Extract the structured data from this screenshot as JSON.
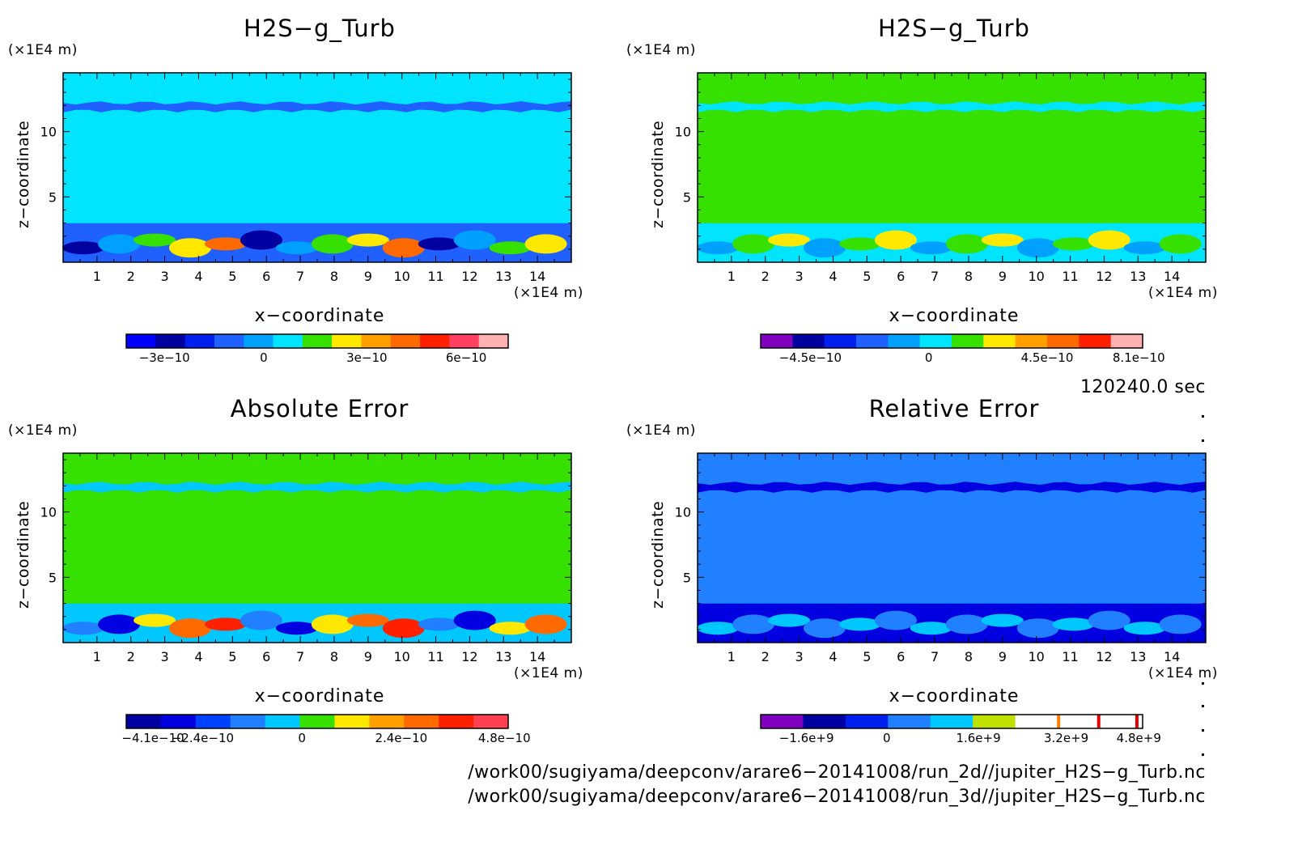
{
  "chart_data": [
    {
      "type": "heatmap",
      "title": "H2S−g_Turb",
      "xlabel": "x−coordinate",
      "ylabel": "z−coordinate",
      "x_unit": "(×1E4 m)",
      "y_unit": "(×1E4 m)",
      "xlim": [
        0,
        15
      ],
      "ylim": [
        0,
        14.5
      ],
      "x_ticks": [
        "1",
        "2",
        "3",
        "4",
        "5",
        "6",
        "7",
        "8",
        "9",
        "10",
        "11",
        "12",
        "13",
        "14"
      ],
      "y_ticks": [
        "5",
        "10"
      ],
      "background_color": "#00e4ff",
      "colorbar": {
        "colors": [
          "#0000ff",
          "#0000a0",
          "#0020f0",
          "#2060ff",
          "#00a0ff",
          "#00e4ff",
          "#36e000",
          "#ffe800",
          "#ffa000",
          "#ff6a00",
          "#ff2000",
          "#ff4060",
          "#ffb0b0"
        ],
        "tick_labels": [
          "−3e−10",
          "0",
          "3e−10",
          "6e−10"
        ]
      }
    },
    {
      "type": "heatmap",
      "title": "H2S−g_Turb",
      "xlabel": "x−coordinate",
      "ylabel": "z−coordinate",
      "x_unit": "(×1E4 m)",
      "y_unit": "(×1E4 m)",
      "xlim": [
        0,
        15
      ],
      "ylim": [
        0,
        14.5
      ],
      "x_ticks": [
        "1",
        "2",
        "3",
        "4",
        "5",
        "6",
        "7",
        "8",
        "9",
        "10",
        "11",
        "12",
        "13",
        "14"
      ],
      "y_ticks": [
        "5",
        "10"
      ],
      "background_color": "#36e000",
      "colorbar": {
        "colors": [
          "#8000c0",
          "#0000a0",
          "#0020f0",
          "#2060ff",
          "#00a0ff",
          "#00e4ff",
          "#36e000",
          "#ffe800",
          "#ffa000",
          "#ff6a00",
          "#ff2000",
          "#ffb0b0"
        ],
        "tick_labels": [
          "−4.5e−10",
          "0",
          "4.5e−10",
          "8.1e−10"
        ]
      }
    },
    {
      "type": "heatmap",
      "title": "Absolute Error",
      "xlabel": "x−coordinate",
      "ylabel": "z−coordinate",
      "x_unit": "(×1E4 m)",
      "y_unit": "(×1E4 m)",
      "xlim": [
        0,
        15
      ],
      "ylim": [
        0,
        14.5
      ],
      "x_ticks": [
        "1",
        "2",
        "3",
        "4",
        "5",
        "6",
        "7",
        "8",
        "9",
        "10",
        "11",
        "12",
        "13",
        "14"
      ],
      "y_ticks": [
        "5",
        "10"
      ],
      "background_color": "#36e000",
      "colorbar": {
        "colors": [
          "#0000a0",
          "#0000e0",
          "#0040ff",
          "#2080ff",
          "#00c8ff",
          "#36e000",
          "#ffe800",
          "#ffa000",
          "#ff6a00",
          "#ff2000",
          "#ff4050"
        ],
        "tick_labels": [
          "−4.1e−10",
          "−2.4e−10",
          "0",
          "2.4e−10",
          "4.8e−10"
        ]
      }
    },
    {
      "type": "heatmap",
      "title": "Relative Error",
      "xlabel": "x−coordinate",
      "ylabel": "z−coordinate",
      "x_unit": "(×1E4 m)",
      "y_unit": "(×1E4 m)",
      "xlim": [
        0,
        15
      ],
      "ylim": [
        0,
        14.5
      ],
      "x_ticks": [
        "1",
        "2",
        "3",
        "4",
        "5",
        "6",
        "7",
        "8",
        "9",
        "10",
        "11",
        "12",
        "13",
        "14"
      ],
      "y_ticks": [
        "5",
        "10"
      ],
      "background_color": "#2080ff",
      "colorbar": {
        "colors": [
          "#8000c0",
          "#0000a0",
          "#0020f0",
          "#2080ff",
          "#00c8ff",
          "#c0e000",
          "#ffffff",
          "#ffffff",
          "#ffffff"
        ],
        "tick_labels": [
          "−1.6e+9",
          "0",
          "1.6e+9",
          "3.2e+9",
          "4.8e+9"
        ]
      }
    }
  ],
  "footer": {
    "time": "120240.0 sec",
    "path1": "/work00/sugiyama/deepconv/arare6−20141008/run_2d//jupiter_H2S−g_Turb.nc",
    "path2": "/work00/sugiyama/deepconv/arare6−20141008/run_3d//jupiter_H2S−g_Turb.nc"
  }
}
